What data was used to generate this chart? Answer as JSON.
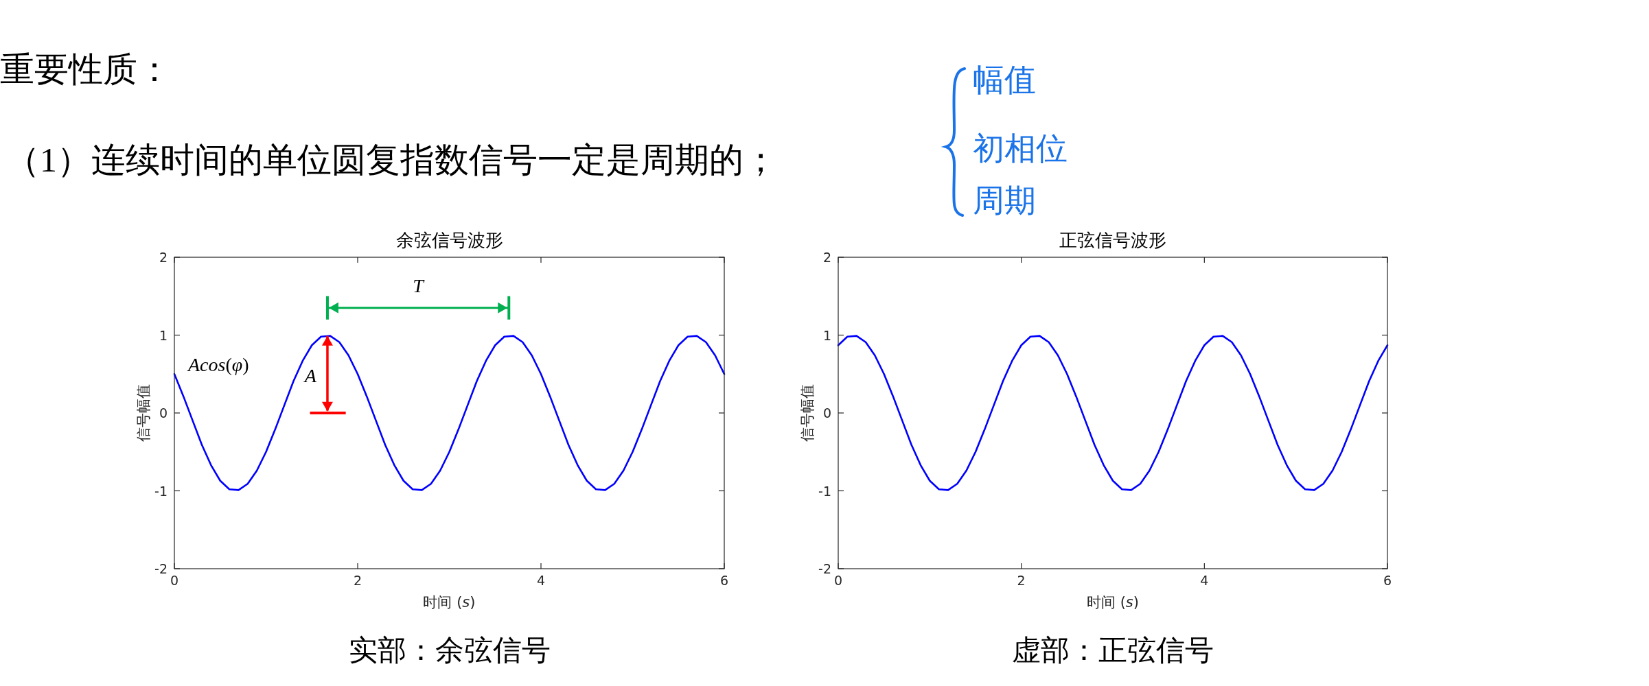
{
  "chart_data": [
    {
      "type": "other",
      "title": "重要性质：",
      "annotations": [
        "（1）连续时间的单位圆复指数信号一定是周期的；",
        "幅值",
        "初相位",
        "周期"
      ]
    },
    {
      "type": "line",
      "title": "余弦信号波形",
      "xlabel": "时间 (*s*)",
      "ylabel": "信号幅值",
      "xlim": [
        0,
        6
      ],
      "ylim": [
        -2,
        2
      ],
      "xticks": [
        0,
        2,
        4,
        6
      ],
      "yticks": [
        -2,
        -1,
        0,
        1,
        2
      ],
      "series": [
        {
          "color": "#0000ff",
          "x": [
            0,
            0.1,
            0.2,
            0.3,
            0.4,
            0.5,
            0.6,
            0.7,
            0.8,
            0.9,
            1,
            1.1,
            1.2,
            1.3,
            1.4,
            1.5,
            1.6,
            1.7,
            1.8,
            1.9,
            2,
            2.1,
            2.2,
            2.3,
            2.4,
            2.5,
            2.6,
            2.7,
            2.8,
            2.9,
            3,
            3.1,
            3.2,
            3.3,
            3.4,
            3.5,
            3.6,
            3.7,
            3.8,
            3.9,
            4,
            4.1,
            4.2,
            4.3,
            4.4,
            4.5,
            4.6,
            4.7,
            4.8,
            4.9,
            5,
            5.1,
            5.2,
            5.3,
            5.4,
            5.5,
            5.6,
            5.7,
            5.8,
            5.9,
            6
          ],
          "values": [
            0.5,
            0.21,
            -0.1,
            -0.41,
            -0.67,
            -0.87,
            -0.98,
            -0.99,
            -0.91,
            -0.74,
            -0.5,
            -0.21,
            0.1,
            0.41,
            0.67,
            0.87,
            0.98,
            0.99,
            0.91,
            0.74,
            0.5,
            0.21,
            -0.1,
            -0.41,
            -0.67,
            -0.87,
            -0.98,
            -0.99,
            -0.91,
            -0.74,
            -0.5,
            -0.21,
            0.1,
            0.41,
            0.67,
            0.87,
            0.98,
            0.99,
            0.91,
            0.74,
            0.5,
            0.21,
            -0.1,
            -0.41,
            -0.67,
            -0.87,
            -0.98,
            -0.99,
            -0.91,
            -0.74,
            -0.5,
            -0.21,
            0.1,
            0.41,
            0.67,
            0.87,
            0.98,
            0.99,
            0.91,
            0.74,
            0.5
          ]
        }
      ],
      "annotations": [
        "*T*",
        "*A*",
        {
          "text": "*Acos*(*φ*)",
          "x": 0,
          "y": 0.5
        },
        "实部：余弦信号"
      ]
    },
    {
      "type": "line",
      "title": "正弦信号波形",
      "xlabel": "时间 (*s*)",
      "ylabel": "信号幅值",
      "xlim": [
        0,
        6
      ],
      "ylim": [
        -2,
        2
      ],
      "xticks": [
        0,
        2,
        4,
        6
      ],
      "yticks": [
        -2,
        -1,
        0,
        1,
        2
      ],
      "series": [
        {
          "color": "#0000ff",
          "x": [
            0,
            0.1,
            0.2,
            0.3,
            0.4,
            0.5,
            0.6,
            0.7,
            0.8,
            0.9,
            1,
            1.1,
            1.2,
            1.3,
            1.4,
            1.5,
            1.6,
            1.7,
            1.8,
            1.9,
            2,
            2.1,
            2.2,
            2.3,
            2.4,
            2.5,
            2.6,
            2.7,
            2.8,
            2.9,
            3,
            3.1,
            3.2,
            3.3,
            3.4,
            3.5,
            3.6,
            3.7,
            3.8,
            3.9,
            4,
            4.1,
            4.2,
            4.3,
            4.4,
            4.5,
            4.6,
            4.7,
            4.8,
            4.9,
            5,
            5.1,
            5.2,
            5.3,
            5.4,
            5.5,
            5.6,
            5.7,
            5.8,
            5.9,
            6
          ],
          "values": [
            0.87,
            0.98,
            0.99,
            0.91,
            0.74,
            0.5,
            0.21,
            -0.1,
            -0.41,
            -0.67,
            -0.87,
            -0.98,
            -0.99,
            -0.91,
            -0.74,
            -0.5,
            -0.21,
            0.1,
            0.41,
            0.67,
            0.87,
            0.98,
            0.99,
            0.91,
            0.74,
            0.5,
            0.21,
            -0.1,
            -0.41,
            -0.67,
            -0.87,
            -0.98,
            -0.99,
            -0.91,
            -0.74,
            -0.5,
            -0.21,
            0.1,
            0.41,
            0.67,
            0.87,
            0.98,
            0.99,
            0.91,
            0.74,
            0.5,
            0.21,
            -0.1,
            -0.41,
            -0.67,
            -0.87,
            -0.98,
            -0.99,
            -0.91,
            -0.74,
            -0.5,
            -0.21,
            0.1,
            0.41,
            0.67,
            0.87
          ]
        }
      ],
      "annotations": [
        "虚部：正弦信号"
      ]
    }
  ]
}
